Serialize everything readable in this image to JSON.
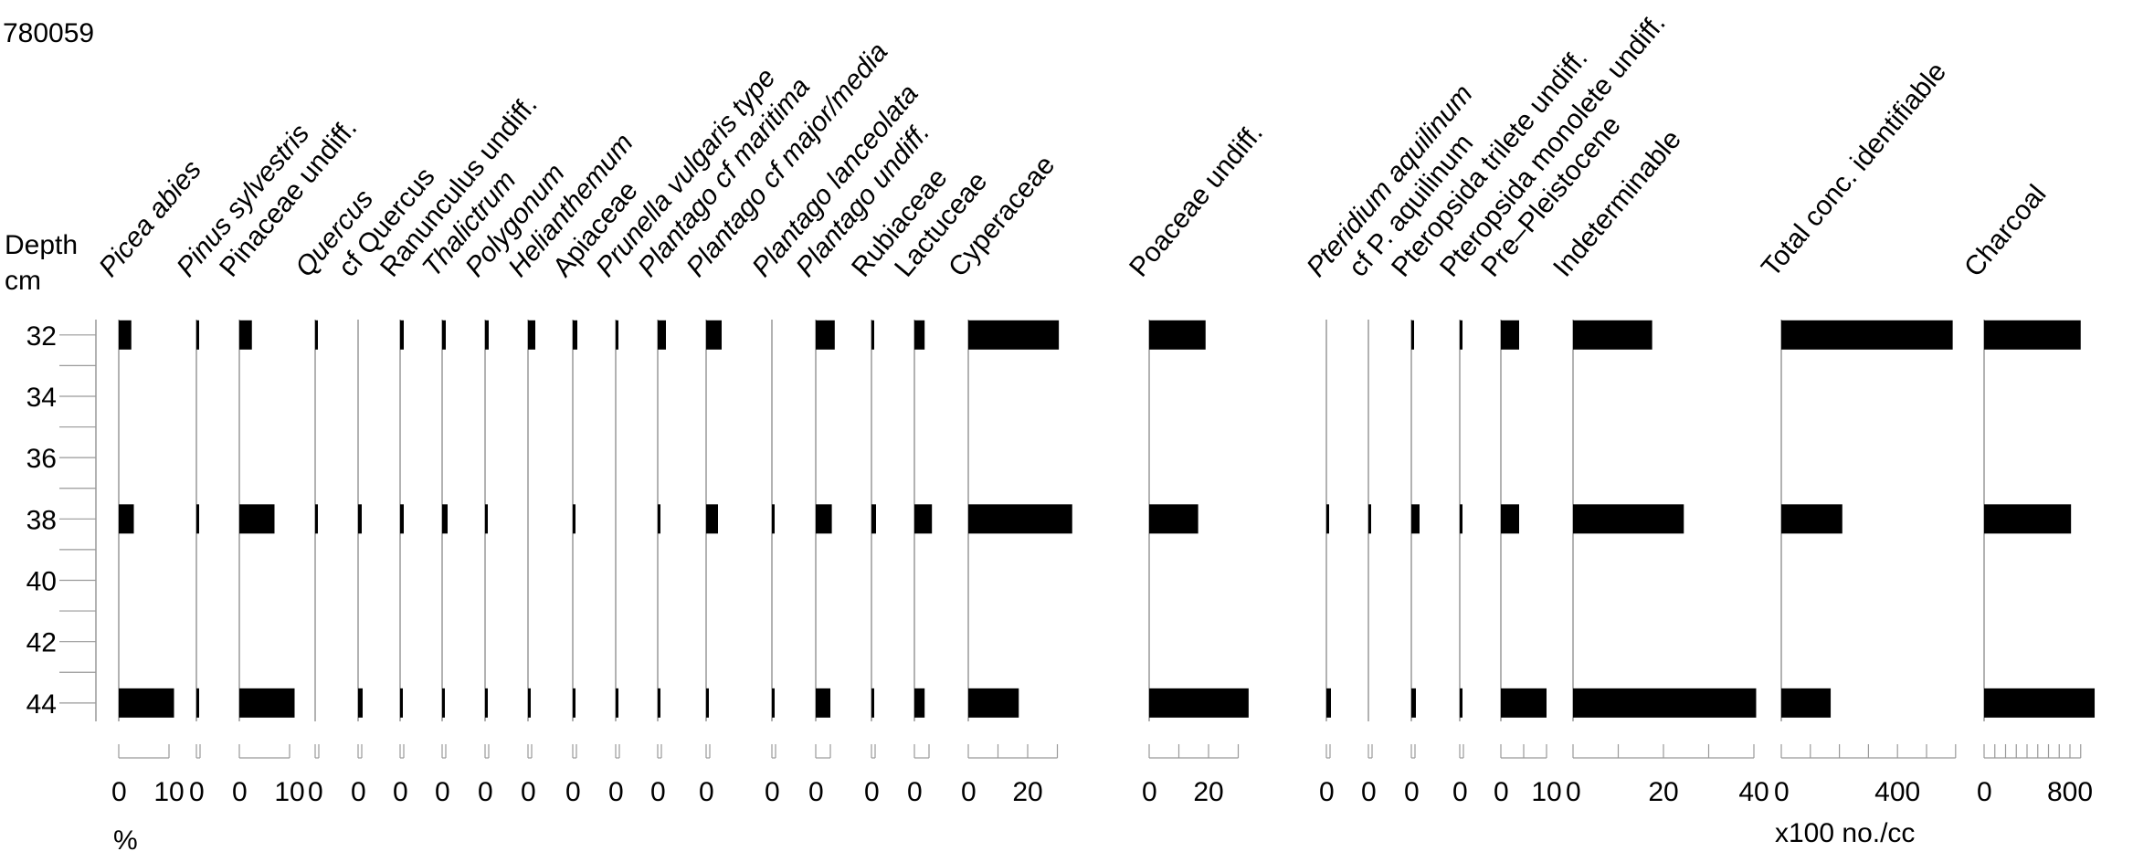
{
  "title": "780059",
  "chart_data": {
    "type": "bar",
    "orientation": "horizontal",
    "depth_label": "Depth",
    "depth_unit": "cm",
    "depth_ticks": [
      32,
      34,
      36,
      38,
      40,
      42,
      44
    ],
    "depth_range": [
      31.5,
      44.6
    ],
    "samples": [
      32,
      38,
      44
    ],
    "unit_label_left": "%",
    "unit_label_right": "x100 no./cc",
    "series": [
      {
        "name": "Picea abies",
        "italic": true,
        "axis_max": 10,
        "tick_step": 10,
        "ticks_labeled": [
          0,
          10
        ],
        "values": [
          2.5,
          3,
          11
        ]
      },
      {
        "name": "Pinus sylvestris",
        "italic": true,
        "axis_max": 2,
        "tick_step": 2,
        "ticks_labeled": [
          0
        ],
        "values": [
          0.5,
          1,
          1.5
        ]
      },
      {
        "name": "Pinaceae undiff.",
        "italic": false,
        "axis_max": 10,
        "tick_step": 10,
        "ticks_labeled": [
          0,
          10
        ],
        "values": [
          2.5,
          7,
          11
        ]
      },
      {
        "name": "Quercus",
        "italic": true,
        "axis_max": 2,
        "tick_step": 2,
        "ticks_labeled": [
          0
        ],
        "values": [
          0.5,
          1,
          0
        ]
      },
      {
        "name": "cf Quercus",
        "italic": false,
        "axis_max": 2,
        "tick_step": 2,
        "ticks_labeled": [
          0
        ],
        "values": [
          0,
          2,
          2.5
        ]
      },
      {
        "name": "Ranunculus undiff.",
        "italic": false,
        "axis_max": 2,
        "tick_step": 2,
        "ticks_labeled": [
          0
        ],
        "values": [
          2,
          2,
          0.3
        ]
      },
      {
        "name": "Thalictrum",
        "italic": true,
        "axis_max": 2,
        "tick_step": 2,
        "ticks_labeled": [
          0
        ],
        "values": [
          2,
          3,
          0.3
        ]
      },
      {
        "name": "Polygonum",
        "italic": true,
        "axis_max": 2,
        "tick_step": 2,
        "ticks_labeled": [
          0
        ],
        "values": [
          2,
          0.3,
          0.5
        ]
      },
      {
        "name": "Helianthemum",
        "italic": true,
        "axis_max": 2,
        "tick_step": 2,
        "ticks_labeled": [
          0
        ],
        "values": [
          4,
          0,
          0.3
        ]
      },
      {
        "name": "Apiaceae",
        "italic": false,
        "axis_max": 2,
        "tick_step": 2,
        "ticks_labeled": [
          0
        ],
        "values": [
          2.5,
          0.3,
          1.5
        ]
      },
      {
        "name": "Prunella vulgaris type",
        "italic": true,
        "axis_max": 2,
        "tick_step": 2,
        "ticks_labeled": [
          0
        ],
        "values": [
          0.3,
          0,
          1.5
        ]
      },
      {
        "name": "Plantago cf maritima",
        "italic": true,
        "axis_max": 2,
        "tick_step": 2,
        "ticks_labeled": [
          0
        ],
        "values": [
          4.5,
          1,
          0.3
        ]
      },
      {
        "name": "Plantago cf major/media",
        "italic": true,
        "axis_max": 2,
        "tick_step": 2,
        "ticks_labeled": [
          0
        ],
        "values": [
          8.5,
          6.5,
          1.5
        ]
      },
      {
        "name": "Plantago lanceolata",
        "italic": true,
        "axis_max": 2,
        "tick_step": 2,
        "ticks_labeled": [
          0
        ],
        "values": [
          0,
          0.3,
          1.5
        ]
      },
      {
        "name": "Plantago undiff.",
        "italic": true,
        "axis_max": 5,
        "tick_step": 5,
        "ticks_labeled": [
          0
        ],
        "values": [
          6.5,
          5.5,
          5
        ]
      },
      {
        "name": "Rubiaceae",
        "italic": false,
        "axis_max": 2,
        "tick_step": 2,
        "ticks_labeled": [
          0
        ],
        "values": [
          1.5,
          2.5,
          1.2
        ]
      },
      {
        "name": "Lactuceae",
        "italic": false,
        "axis_max": 5,
        "tick_step": 5,
        "ticks_labeled": [
          0
        ],
        "values": [
          3.5,
          6,
          3.5
        ]
      },
      {
        "name": "Cyperaceae",
        "italic": false,
        "axis_max": 30,
        "tick_step": 10,
        "ticks_labeled": [
          0,
          20
        ],
        "values": [
          30.5,
          35,
          17
        ]
      },
      {
        "name": "Poaceae undiff.",
        "italic": false,
        "axis_max": 30,
        "tick_step": 10,
        "ticks_labeled": [
          0,
          20
        ],
        "values": [
          19,
          16.5,
          33.5
        ]
      },
      {
        "name": "Pteridium aquilinum",
        "italic": true,
        "axis_max": 2,
        "tick_step": 2,
        "ticks_labeled": [
          0
        ],
        "values": [
          0,
          0.5,
          2.5
        ]
      },
      {
        "name": "cf P. aquilinum",
        "italic": false,
        "axis_max": 2,
        "tick_step": 2,
        "ticks_labeled": [
          0
        ],
        "values": [
          0,
          1,
          0
        ]
      },
      {
        "name": "Pteropsida trilete undiff.",
        "italic": false,
        "axis_max": 2,
        "tick_step": 2,
        "ticks_labeled": [
          0
        ],
        "values": [
          1.5,
          4.5,
          2.5
        ]
      },
      {
        "name": "Pteropsida monolete undiff.",
        "italic": false,
        "axis_max": 2,
        "tick_step": 2,
        "ticks_labeled": [
          0
        ],
        "values": [
          0.5,
          1,
          1.2
        ]
      },
      {
        "name": "Pre–Pleistocene",
        "italic": false,
        "axis_max": 10,
        "tick_step": 5,
        "ticks_labeled": [
          0,
          10
        ],
        "values": [
          4,
          4,
          10
        ]
      },
      {
        "name": "Indeterminable",
        "italic": false,
        "axis_max": 40,
        "tick_step": 10,
        "ticks_labeled": [
          0,
          20,
          40
        ],
        "values": [
          17.5,
          24.5,
          40.5
        ]
      },
      {
        "name": "Total conc. identifiable",
        "italic": false,
        "axis_max": 600,
        "tick_step": 100,
        "ticks_labeled": [
          0,
          400
        ],
        "values": [
          590,
          210,
          170
        ]
      },
      {
        "name": "Charcoal",
        "italic": false,
        "axis_max": 900,
        "tick_step": 100,
        "ticks_labeled": [
          0,
          800
        ],
        "values": [
          900,
          810,
          1030
        ]
      }
    ]
  }
}
